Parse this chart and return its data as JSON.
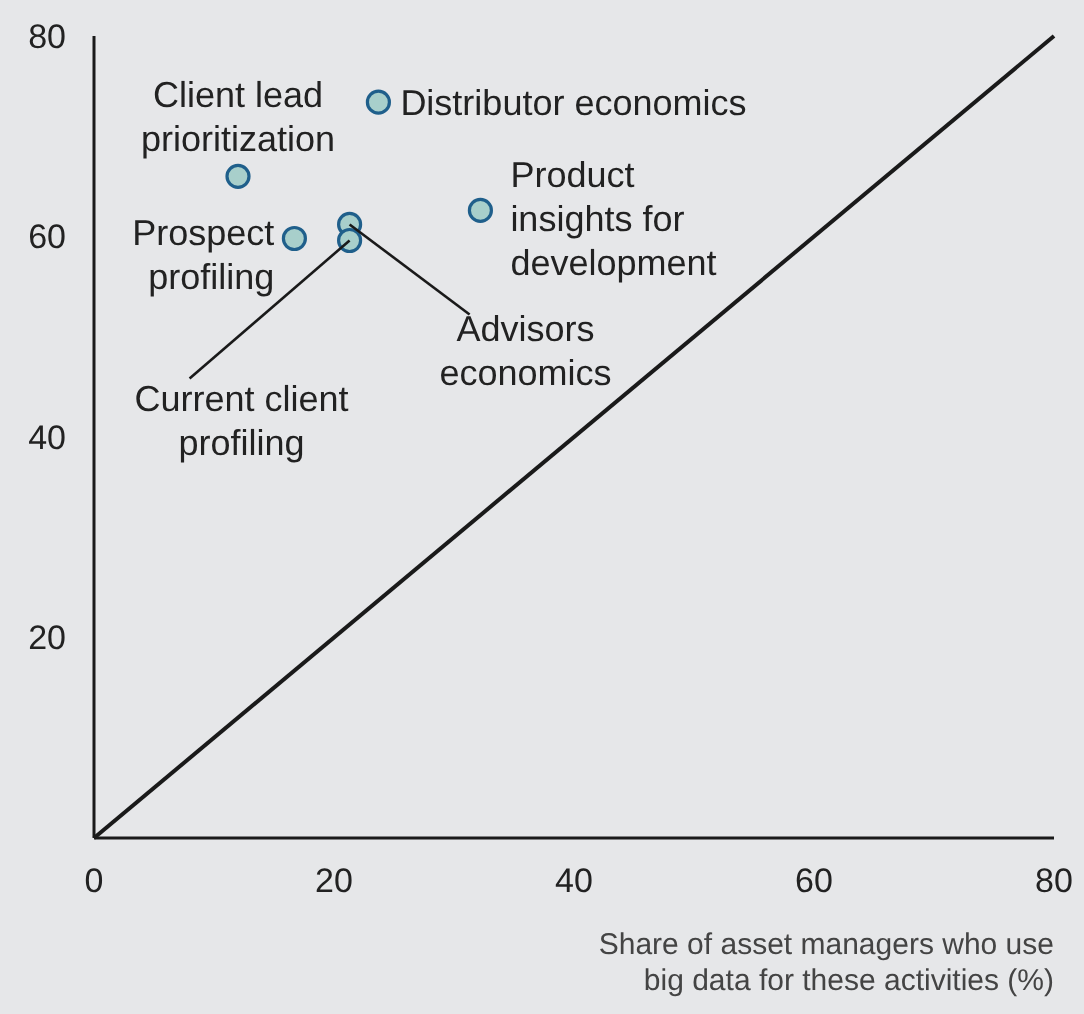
{
  "chart_data": {
    "type": "scatter",
    "xlabel": "Share of asset managers who use\nbig data for these activities (%)",
    "xlim": [
      0,
      80
    ],
    "ylim": [
      0,
      80
    ],
    "xticks": [
      0,
      20,
      40,
      60,
      80
    ],
    "yticks": [
      20,
      40,
      60,
      80
    ],
    "grid": false,
    "marker": "circle",
    "series": [
      {
        "color": "#a8cfcb",
        "x": [
          23.7,
          12,
          16.7,
          21.3,
          21.3,
          32.2
        ],
        "values": [
          73.4,
          66,
          59.8,
          61.2,
          59.6,
          62.6
        ]
      },
      {
        "type": "line",
        "marker": "none",
        "color": "#1a1a1a",
        "x": [
          0,
          80
        ],
        "values": [
          0,
          80
        ]
      }
    ],
    "annotations": [
      {
        "text": "Distributor economics",
        "x": 23.7,
        "y": 73.4
      },
      {
        "text": "Client lead\nprioritization",
        "x": 12,
        "y": 66
      },
      {
        "text": "Prospect\nprofiling",
        "x": 16.7,
        "y": 59.8
      },
      {
        "text": "Advisors\neconomics",
        "x": 21.3,
        "y": 61.2
      },
      {
        "text": "Current client\nprofiling",
        "x": 21.3,
        "y": 59.6
      },
      {
        "text": "Product\ninsights for\ndevelopment",
        "x": 32.2,
        "y": 62.6
      }
    ]
  }
}
